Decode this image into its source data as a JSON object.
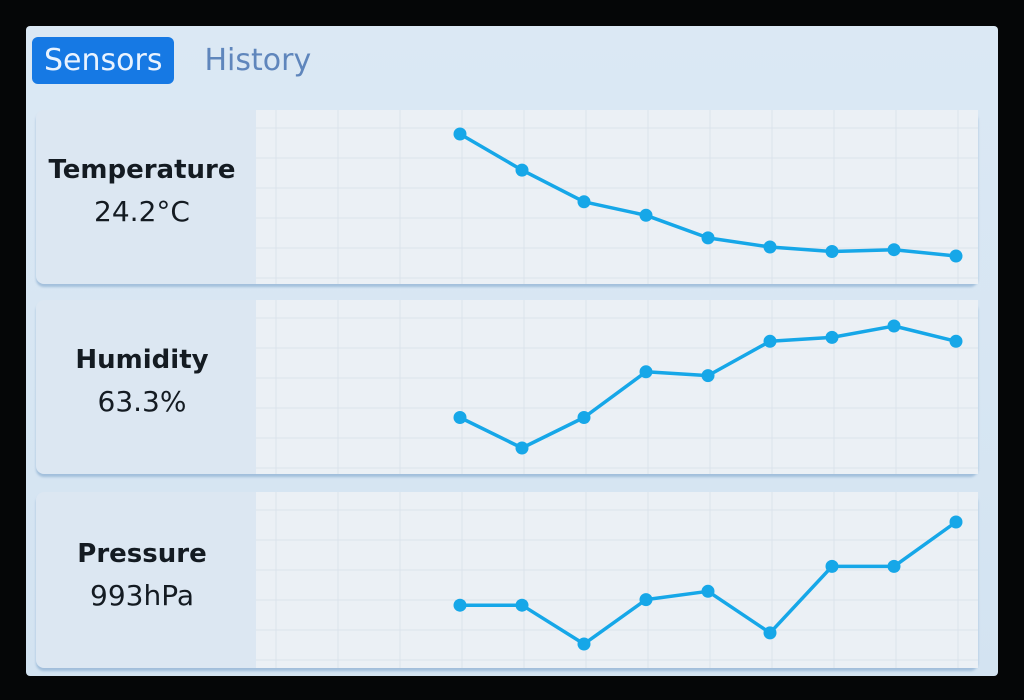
{
  "tabs": [
    {
      "label": "Sensors",
      "active": true
    },
    {
      "label": "History",
      "active": false
    }
  ],
  "sensors": [
    {
      "name": "Temperature",
      "value": "24.2°C",
      "series": [
        32,
        28,
        24.5,
        23,
        20.5,
        19.5,
        19,
        19.2,
        18.5
      ]
    },
    {
      "name": "Humidity",
      "value": "63.3%",
      "series": [
        50,
        46,
        50,
        56,
        55.5,
        60,
        60.5,
        62,
        60
      ]
    },
    {
      "name": "Pressure",
      "value": "993hPa",
      "series": [
        985,
        985,
        978,
        986,
        987.5,
        980,
        992,
        992,
        1000
      ]
    }
  ],
  "colors": {
    "accent": "#1679e4",
    "line": "#16a7e8",
    "plot_bg": "#ebf0f5"
  }
}
